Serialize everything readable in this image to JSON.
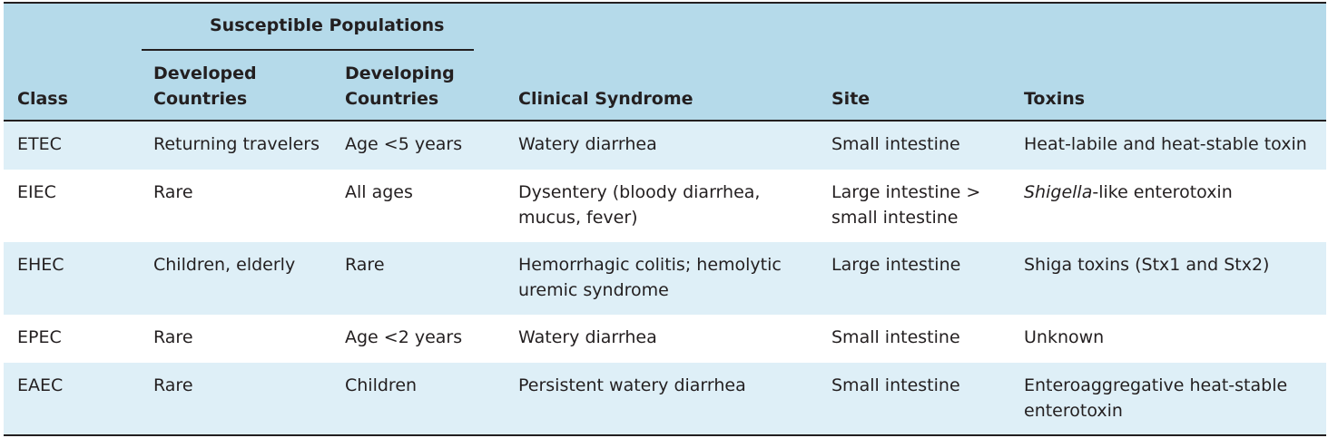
{
  "header": {
    "group_label": "Susceptible Populations",
    "columns": {
      "class": "Class",
      "developed": [
        "Developed",
        "Countries"
      ],
      "developing": [
        "Developing",
        "Countries"
      ],
      "syndrome": "Clinical Syndrome",
      "site": "Site",
      "toxins": "Toxins"
    }
  },
  "rows": [
    {
      "class": "ETEC",
      "developed": "Returning travelers",
      "developing": "Age <5 years",
      "syndrome": [
        "Watery diarrhea"
      ],
      "site": [
        "Small intestine"
      ],
      "toxins_italic": "",
      "toxins": [
        "Heat-labile and heat-stable toxin"
      ]
    },
    {
      "class": "EIEC",
      "developed": "Rare",
      "developing": "All ages",
      "syndrome": [
        "Dysentery (bloody diarrhea,",
        "mucus, fever)"
      ],
      "site": [
        "Large intestine >",
        "small intestine"
      ],
      "toxins_italic": "Shigella",
      "toxins": [
        "-like enterotoxin"
      ]
    },
    {
      "class": "EHEC",
      "developed": "Children, elderly",
      "developing": "Rare",
      "syndrome": [
        "Hemorrhagic colitis; hemolytic",
        "uremic syndrome"
      ],
      "site": [
        "Large intestine"
      ],
      "toxins_italic": "",
      "toxins": [
        "Shiga toxins (Stx1 and Stx2)"
      ]
    },
    {
      "class": "EPEC",
      "developed": "Rare",
      "developing": "Age <2 years",
      "syndrome": [
        "Watery diarrhea"
      ],
      "site": [
        "Small intestine"
      ],
      "toxins_italic": "",
      "toxins": [
        "Unknown"
      ]
    },
    {
      "class": "EAEC",
      "developed": "Rare",
      "developing": "Children",
      "syndrome": [
        "Persistent watery diarrhea"
      ],
      "site": [
        "Small intestine"
      ],
      "toxins_italic": "",
      "toxins": [
        "Enteroaggregative heat-stable",
        "enterotoxin"
      ]
    }
  ],
  "colors": {
    "header_bg": "#b5daea",
    "alt_row_bg": "#deeff7",
    "rule": "#231f20"
  }
}
